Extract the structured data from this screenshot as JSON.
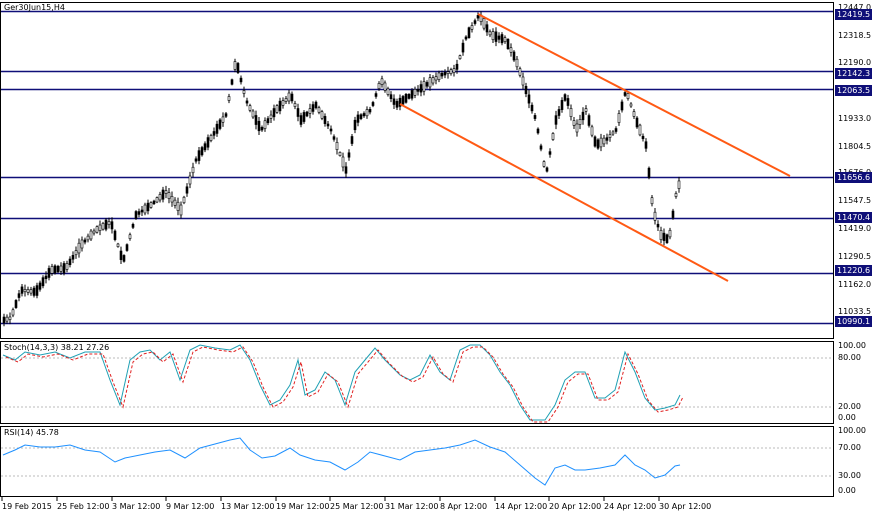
{
  "chart": {
    "title": "Ger30Jun15,H4",
    "price_axis": [
      "12447.0",
      "12318.5",
      "12190.0",
      "11933.0",
      "11804.5",
      "11676.0",
      "11547.5",
      "11419.0",
      "11290.5",
      "11162.0",
      "11033.5"
    ],
    "levels": [
      {
        "label": "12419.5",
        "value": 12419.5
      },
      {
        "label": "12142.3",
        "value": 12142.3
      },
      {
        "label": "12063.5",
        "value": 12063.5
      },
      {
        "label": "11656.6",
        "value": 11656.6
      },
      {
        "label": "11470.4",
        "value": 11470.4
      },
      {
        "label": "11220.6",
        "value": 11220.6
      },
      {
        "label": "10990.1",
        "value": 10990.1
      }
    ],
    "trendline_color": "#ff5a14",
    "level_color": "#0f0f78"
  },
  "stoch": {
    "title": "Stoch(14,3,3) 38.21 27.26",
    "axis": [
      "100.00",
      "80.00",
      "20.00",
      "0.00"
    ]
  },
  "rsi": {
    "title": "RSI(14) 45.78",
    "axis": [
      "100.00",
      "70.00",
      "30.00",
      "0.00"
    ]
  },
  "time_axis": [
    "19 Feb 2015",
    "25 Feb 12:00",
    "3 Mar 12:00",
    "9 Mar 12:00",
    "13 Mar 12:00",
    "19 Mar 12:00",
    "25 Mar 12:00",
    "31 Mar 12:00",
    "8 Apr 12:00",
    "14 Apr 12:00",
    "20 Apr 12:00",
    "24 Apr 12:00",
    "30 Apr 12:00"
  ]
}
